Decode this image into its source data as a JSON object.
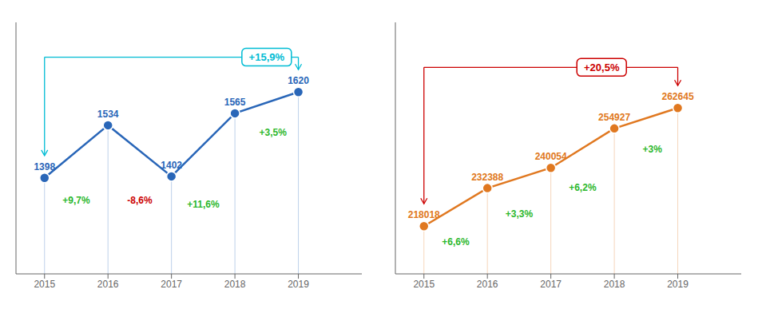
{
  "chart_data": [
    {
      "type": "line",
      "x": [
        2015,
        2016,
        2017,
        2018,
        2019
      ],
      "values": [
        1398,
        1534,
        1402,
        1565,
        1620
      ],
      "color": "#2966B8",
      "xlim": [
        2014.55,
        2020.0
      ],
      "xticks": [
        2015,
        2016,
        2017,
        2018,
        2019
      ],
      "ylim": [
        1150,
        1800
      ],
      "tick_labels": "x",
      "grid": false,
      "data_labels": true,
      "annotations": [
        {
          "text": "+9,7%",
          "color": "#2db82d",
          "x": 2015.5,
          "y": 1340
        },
        {
          "text": "-8,6%",
          "color": "#cc0000",
          "x": 2016.5,
          "y": 1340
        },
        {
          "text": "+11,6%",
          "color": "#2db82d",
          "x": 2017.5,
          "y": 1330
        },
        {
          "text": "+3,5%",
          "color": "#2db82d",
          "x": 2018.6,
          "y": 1515
        }
      ],
      "bracket": {
        "x": [
          2015,
          2019
        ],
        "y": 1710,
        "text": "+15,9%",
        "text_x": 2018.5,
        "color": "#00bcd4"
      }
    },
    {
      "type": "line",
      "x": [
        2015,
        2016,
        2017,
        2018,
        2019
      ],
      "values": [
        218018,
        232388,
        240054,
        254927,
        262645
      ],
      "color": "#E07820",
      "xlim": [
        2014.55,
        2020.0
      ],
      "xticks": [
        2015,
        2016,
        2017,
        2018,
        2019
      ],
      "ylim": [
        200000,
        295000
      ],
      "tick_labels": "x",
      "grid": false,
      "data_labels": true,
      "annotations": [
        {
          "text": "+6,6%",
          "color": "#2db82d",
          "x": 2015.5,
          "y": 212000
        },
        {
          "text": "+3,3%",
          "color": "#2db82d",
          "x": 2016.5,
          "y": 222500
        },
        {
          "text": "+6,2%",
          "color": "#2db82d",
          "x": 2017.5,
          "y": 232500
        },
        {
          "text": "+3%",
          "color": "#2db82d",
          "x": 2018.6,
          "y": 247000
        }
      ],
      "bracket": {
        "x": [
          2015,
          2019
        ],
        "y": 278000,
        "text": "+20,5%",
        "text_x": 2017.8,
        "color": "#cc0000"
      }
    }
  ]
}
